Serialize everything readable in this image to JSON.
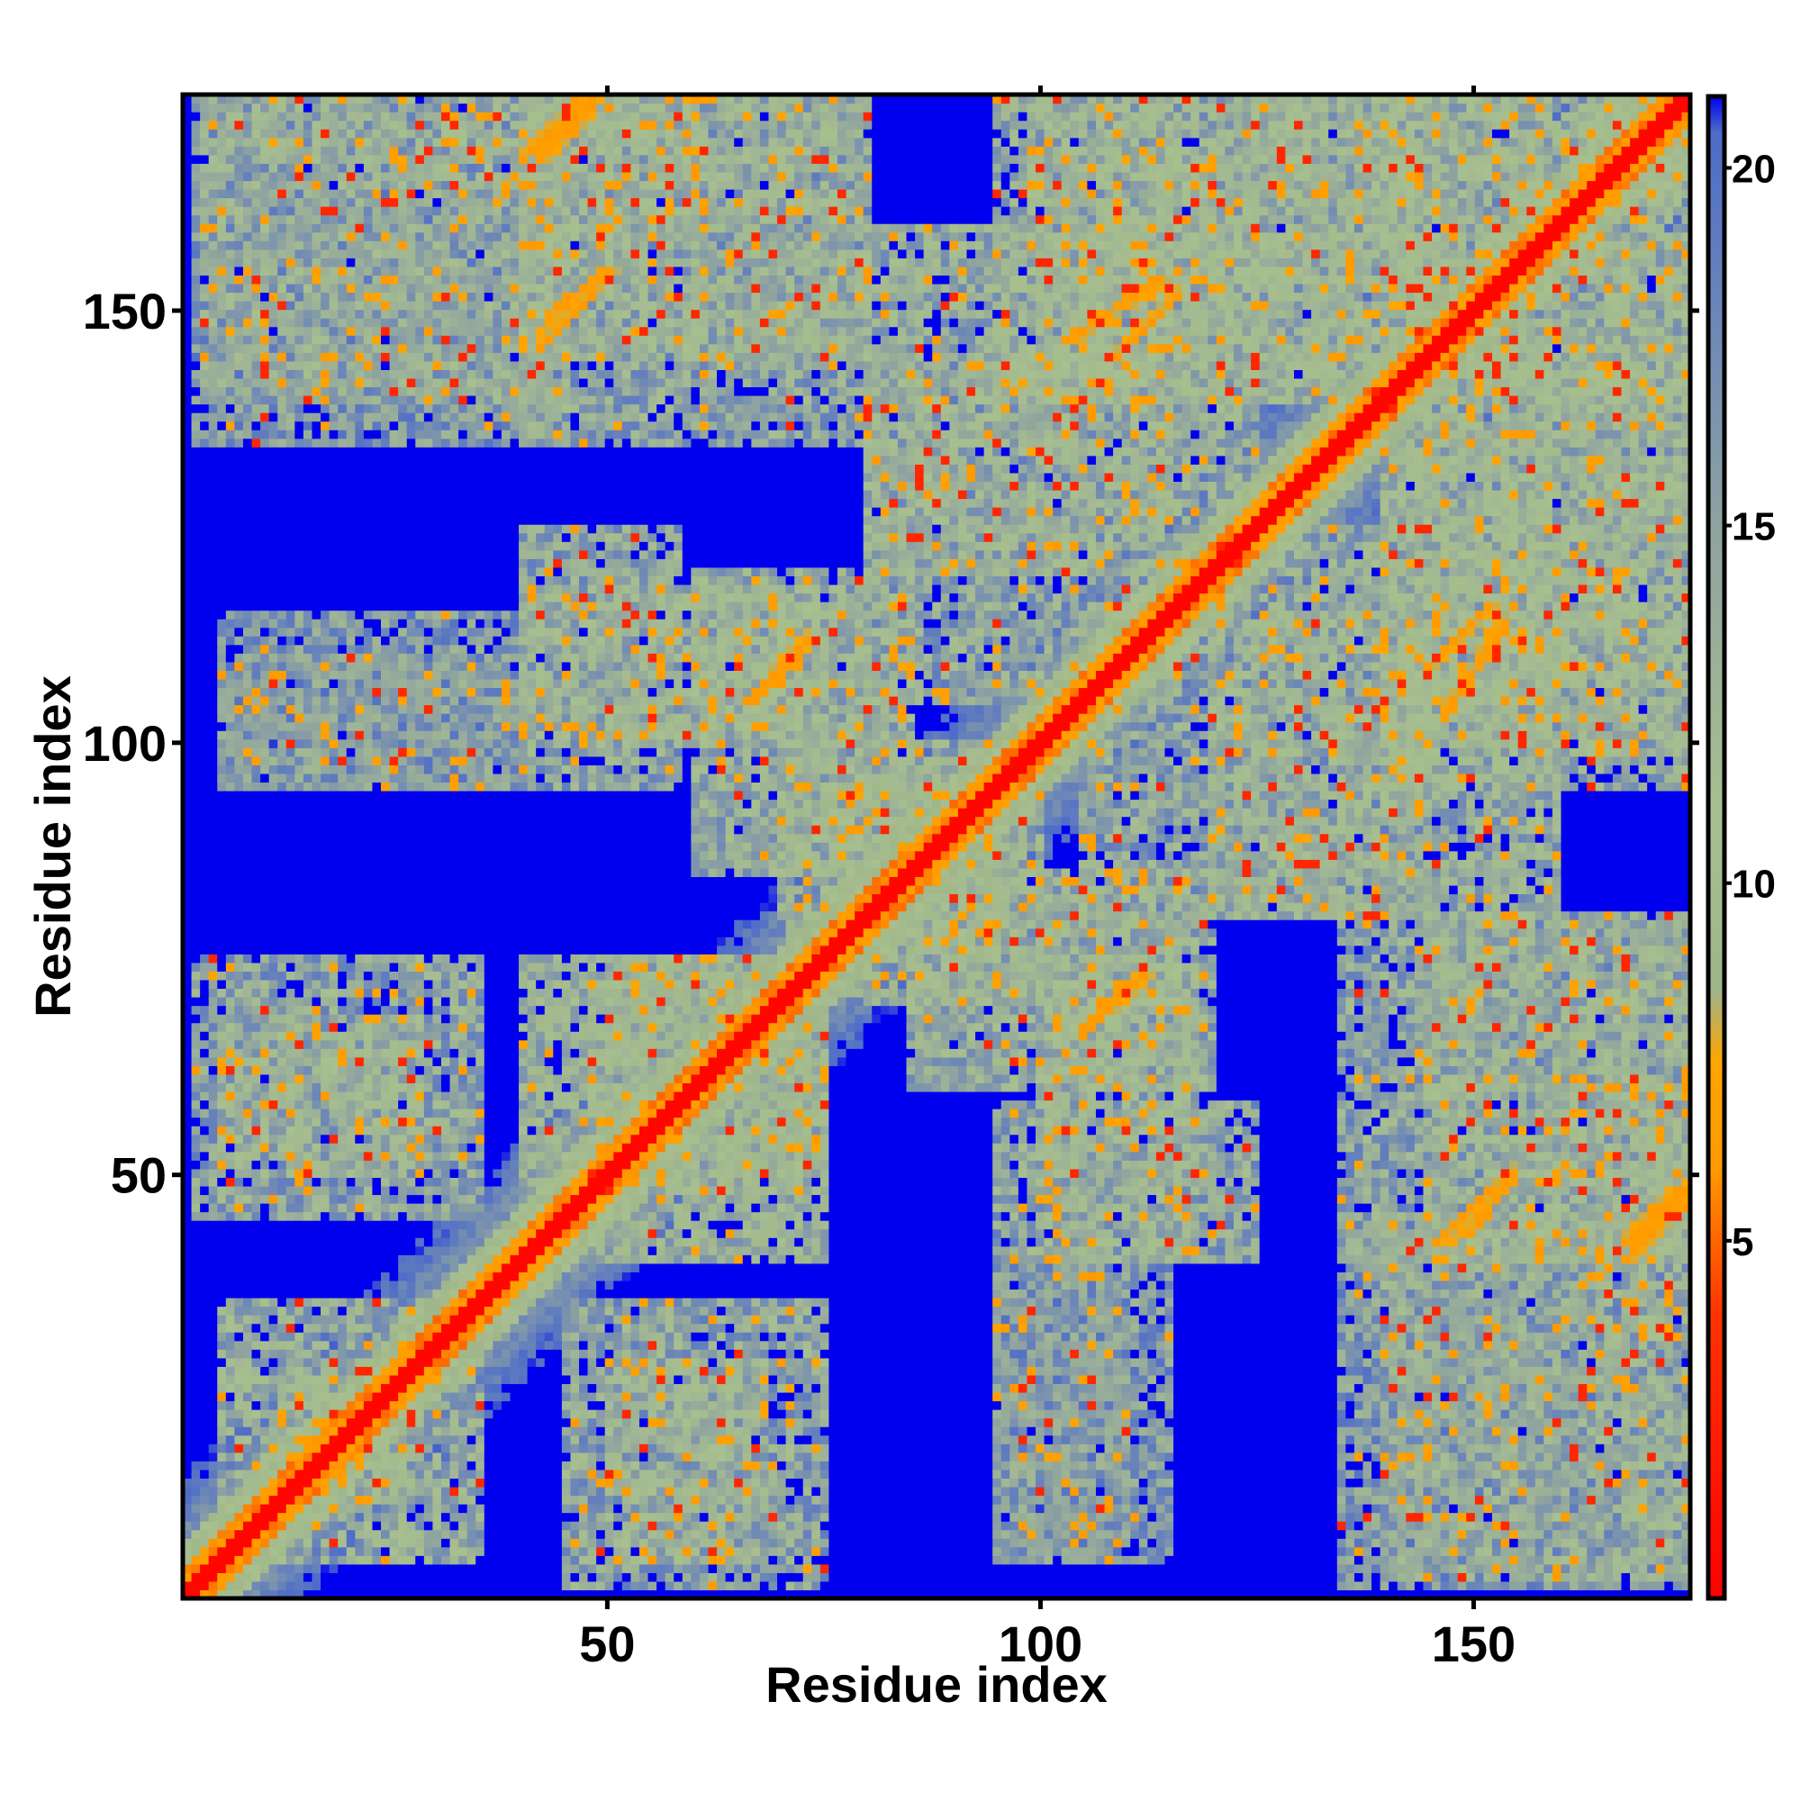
{
  "chart_data": {
    "type": "heatmap",
    "title": "",
    "xlabel": "Residue index",
    "ylabel": "Residue index",
    "xlim": [
      1,
      175
    ],
    "ylim": [
      1,
      175
    ],
    "x_ticks": [
      50,
      100,
      150
    ],
    "y_ticks": [
      50,
      100,
      150
    ],
    "x_tick_labels": [
      "50",
      "100",
      "150"
    ],
    "y_tick_labels": [
      "50",
      "100",
      "150"
    ],
    "colorbar": {
      "ticks": [
        5,
        10,
        15,
        20
      ],
      "tick_labels": [
        "5",
        "10",
        "15",
        "20"
      ],
      "range": [
        0,
        21
      ],
      "color_stops": [
        {
          "value": 0,
          "color": "#ff0000"
        },
        {
          "value": 4,
          "color": "#ff3300"
        },
        {
          "value": 6,
          "color": "#ff9900"
        },
        {
          "value": 7.5,
          "color": "#ffa500"
        },
        {
          "value": 8.5,
          "color": "#9fb58a"
        },
        {
          "value": 11,
          "color": "#a8bf8f"
        },
        {
          "value": 15,
          "color": "#8fa3a0"
        },
        {
          "value": 18,
          "color": "#6b86b8"
        },
        {
          "value": 20.5,
          "color": "#4d6bc9"
        },
        {
          "value": 21,
          "color": "#0000ee"
        }
      ]
    },
    "colors": {
      "background": "#0000ee",
      "diagonal": "#ff0000",
      "near_contact": "#ffa500",
      "mid": "#a8bf8f",
      "far": "#6b86b8"
    },
    "diagonal_band": {
      "center_value": 0,
      "width_residues": 3
    },
    "contact_patches": [
      {
        "x_range": [
          5,
          28
        ],
        "y_range": [
          50,
          68
        ],
        "value": 14
      },
      {
        "x_range": [
          12,
          35
        ],
        "y_range": [
          5,
          28
        ],
        "value": 14
      },
      {
        "x_range": [
          45,
          75
        ],
        "y_range": [
          2,
          35
        ],
        "value": 15
      },
      {
        "x_range": [
          40,
          75
        ],
        "y_range": [
          48,
          75
        ],
        "value": 13
      },
      {
        "x_range": [
          3,
          45
        ],
        "y_range": [
          140,
          175
        ],
        "value": 15
      },
      {
        "x_range": [
          40,
          80
        ],
        "y_range": [
          145,
          175
        ],
        "value": 14
      },
      {
        "x_range": [
          40,
          80
        ],
        "y_range": [
          100,
          118
        ],
        "value": 14
      },
      {
        "x_range": [
          5,
          40
        ],
        "y_range": [
          95,
          110
        ],
        "value": 17
      },
      {
        "x_range": [
          70,
          95
        ],
        "y_range": [
          75,
          100
        ],
        "value": 13
      },
      {
        "x_range": [
          85,
          120
        ],
        "y_range": [
          60,
          85
        ],
        "value": 14
      },
      {
        "x_range": [
          95,
          125
        ],
        "y_range": [
          40,
          58
        ],
        "value": 15
      },
      {
        "x_range": [
          95,
          115
        ],
        "y_range": [
          5,
          40
        ],
        "value": 16
      },
      {
        "x_range": [
          80,
          125
        ],
        "y_range": [
          120,
          160
        ],
        "value": 14
      },
      {
        "x_range": [
          100,
          145
        ],
        "y_range": [
          140,
          175
        ],
        "value": 14
      },
      {
        "x_range": [
          105,
          145
        ],
        "y_range": [
          80,
          115
        ],
        "value": 15
      },
      {
        "x_range": [
          140,
          175
        ],
        "y_range": [
          95,
          125
        ],
        "value": 14
      },
      {
        "x_range": [
          140,
          175
        ],
        "y_range": [
          125,
          175
        ],
        "value": 14
      },
      {
        "x_range": [
          135,
          175
        ],
        "y_range": [
          40,
          80
        ],
        "value": 15
      },
      {
        "x_range": [
          135,
          165
        ],
        "y_range": [
          2,
          45
        ],
        "value": 16
      },
      {
        "x_range": [
          165,
          175
        ],
        "y_range": [
          2,
          60
        ],
        "value": 15
      }
    ],
    "near_contact_lines": [
      {
        "from": [
          43,
          150
        ],
        "to": [
          50,
          155
        ],
        "value": 6
      },
      {
        "from": [
          42,
          168
        ],
        "to": [
          48,
          175
        ],
        "value": 6
      },
      {
        "from": [
          66,
          105
        ],
        "to": [
          72,
          111
        ],
        "value": 6
      },
      {
        "from": [
          103,
          147
        ],
        "to": [
          114,
          154
        ],
        "value": 6
      },
      {
        "from": [
          105,
          67
        ],
        "to": [
          112,
          73
        ],
        "value": 6
      },
      {
        "from": [
          145,
          109
        ],
        "to": [
          152,
          116
        ],
        "value": 6
      },
      {
        "from": [
          146,
          42
        ],
        "to": [
          152,
          48
        ],
        "value": 6
      },
      {
        "from": [
          168,
          40
        ],
        "to": [
          175,
          48
        ],
        "value": 6
      }
    ]
  }
}
